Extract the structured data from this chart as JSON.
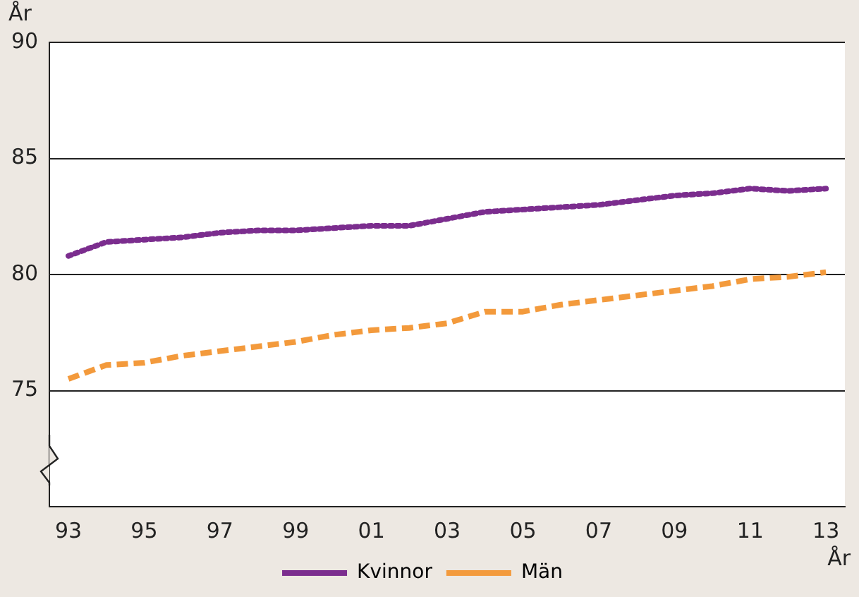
{
  "chart_data": {
    "type": "line",
    "ylabel": "År",
    "xlabel": "År",
    "categories": [
      "93",
      null,
      "95",
      null,
      "97",
      null,
      "99",
      null,
      "01",
      null,
      "03",
      null,
      "05",
      null,
      "07",
      null,
      "09",
      null,
      "11",
      null,
      "13"
    ],
    "series": [
      {
        "name": "Kvinnor",
        "color": "#7b2d8e",
        "line_style": "dotted",
        "values": [
          80.8,
          81.4,
          81.5,
          81.6,
          81.8,
          81.9,
          81.9,
          82.0,
          82.1,
          82.1,
          82.4,
          82.7,
          82.8,
          82.9,
          83.0,
          83.2,
          83.4,
          83.5,
          83.7,
          83.6,
          83.7
        ]
      },
      {
        "name": "Män",
        "color": "#f39a3c",
        "line_style": "dashed",
        "values": [
          75.5,
          76.1,
          76.2,
          76.5,
          76.7,
          76.9,
          77.1,
          77.4,
          77.6,
          77.7,
          77.9,
          78.4,
          78.4,
          78.7,
          78.9,
          79.1,
          79.3,
          79.5,
          79.8,
          79.9,
          80.1
        ]
      }
    ],
    "ylim": [
      70,
      90
    ],
    "yticks": [
      75,
      80,
      85,
      90
    ],
    "grid": "y",
    "legend": "bottom",
    "marker": "none"
  }
}
